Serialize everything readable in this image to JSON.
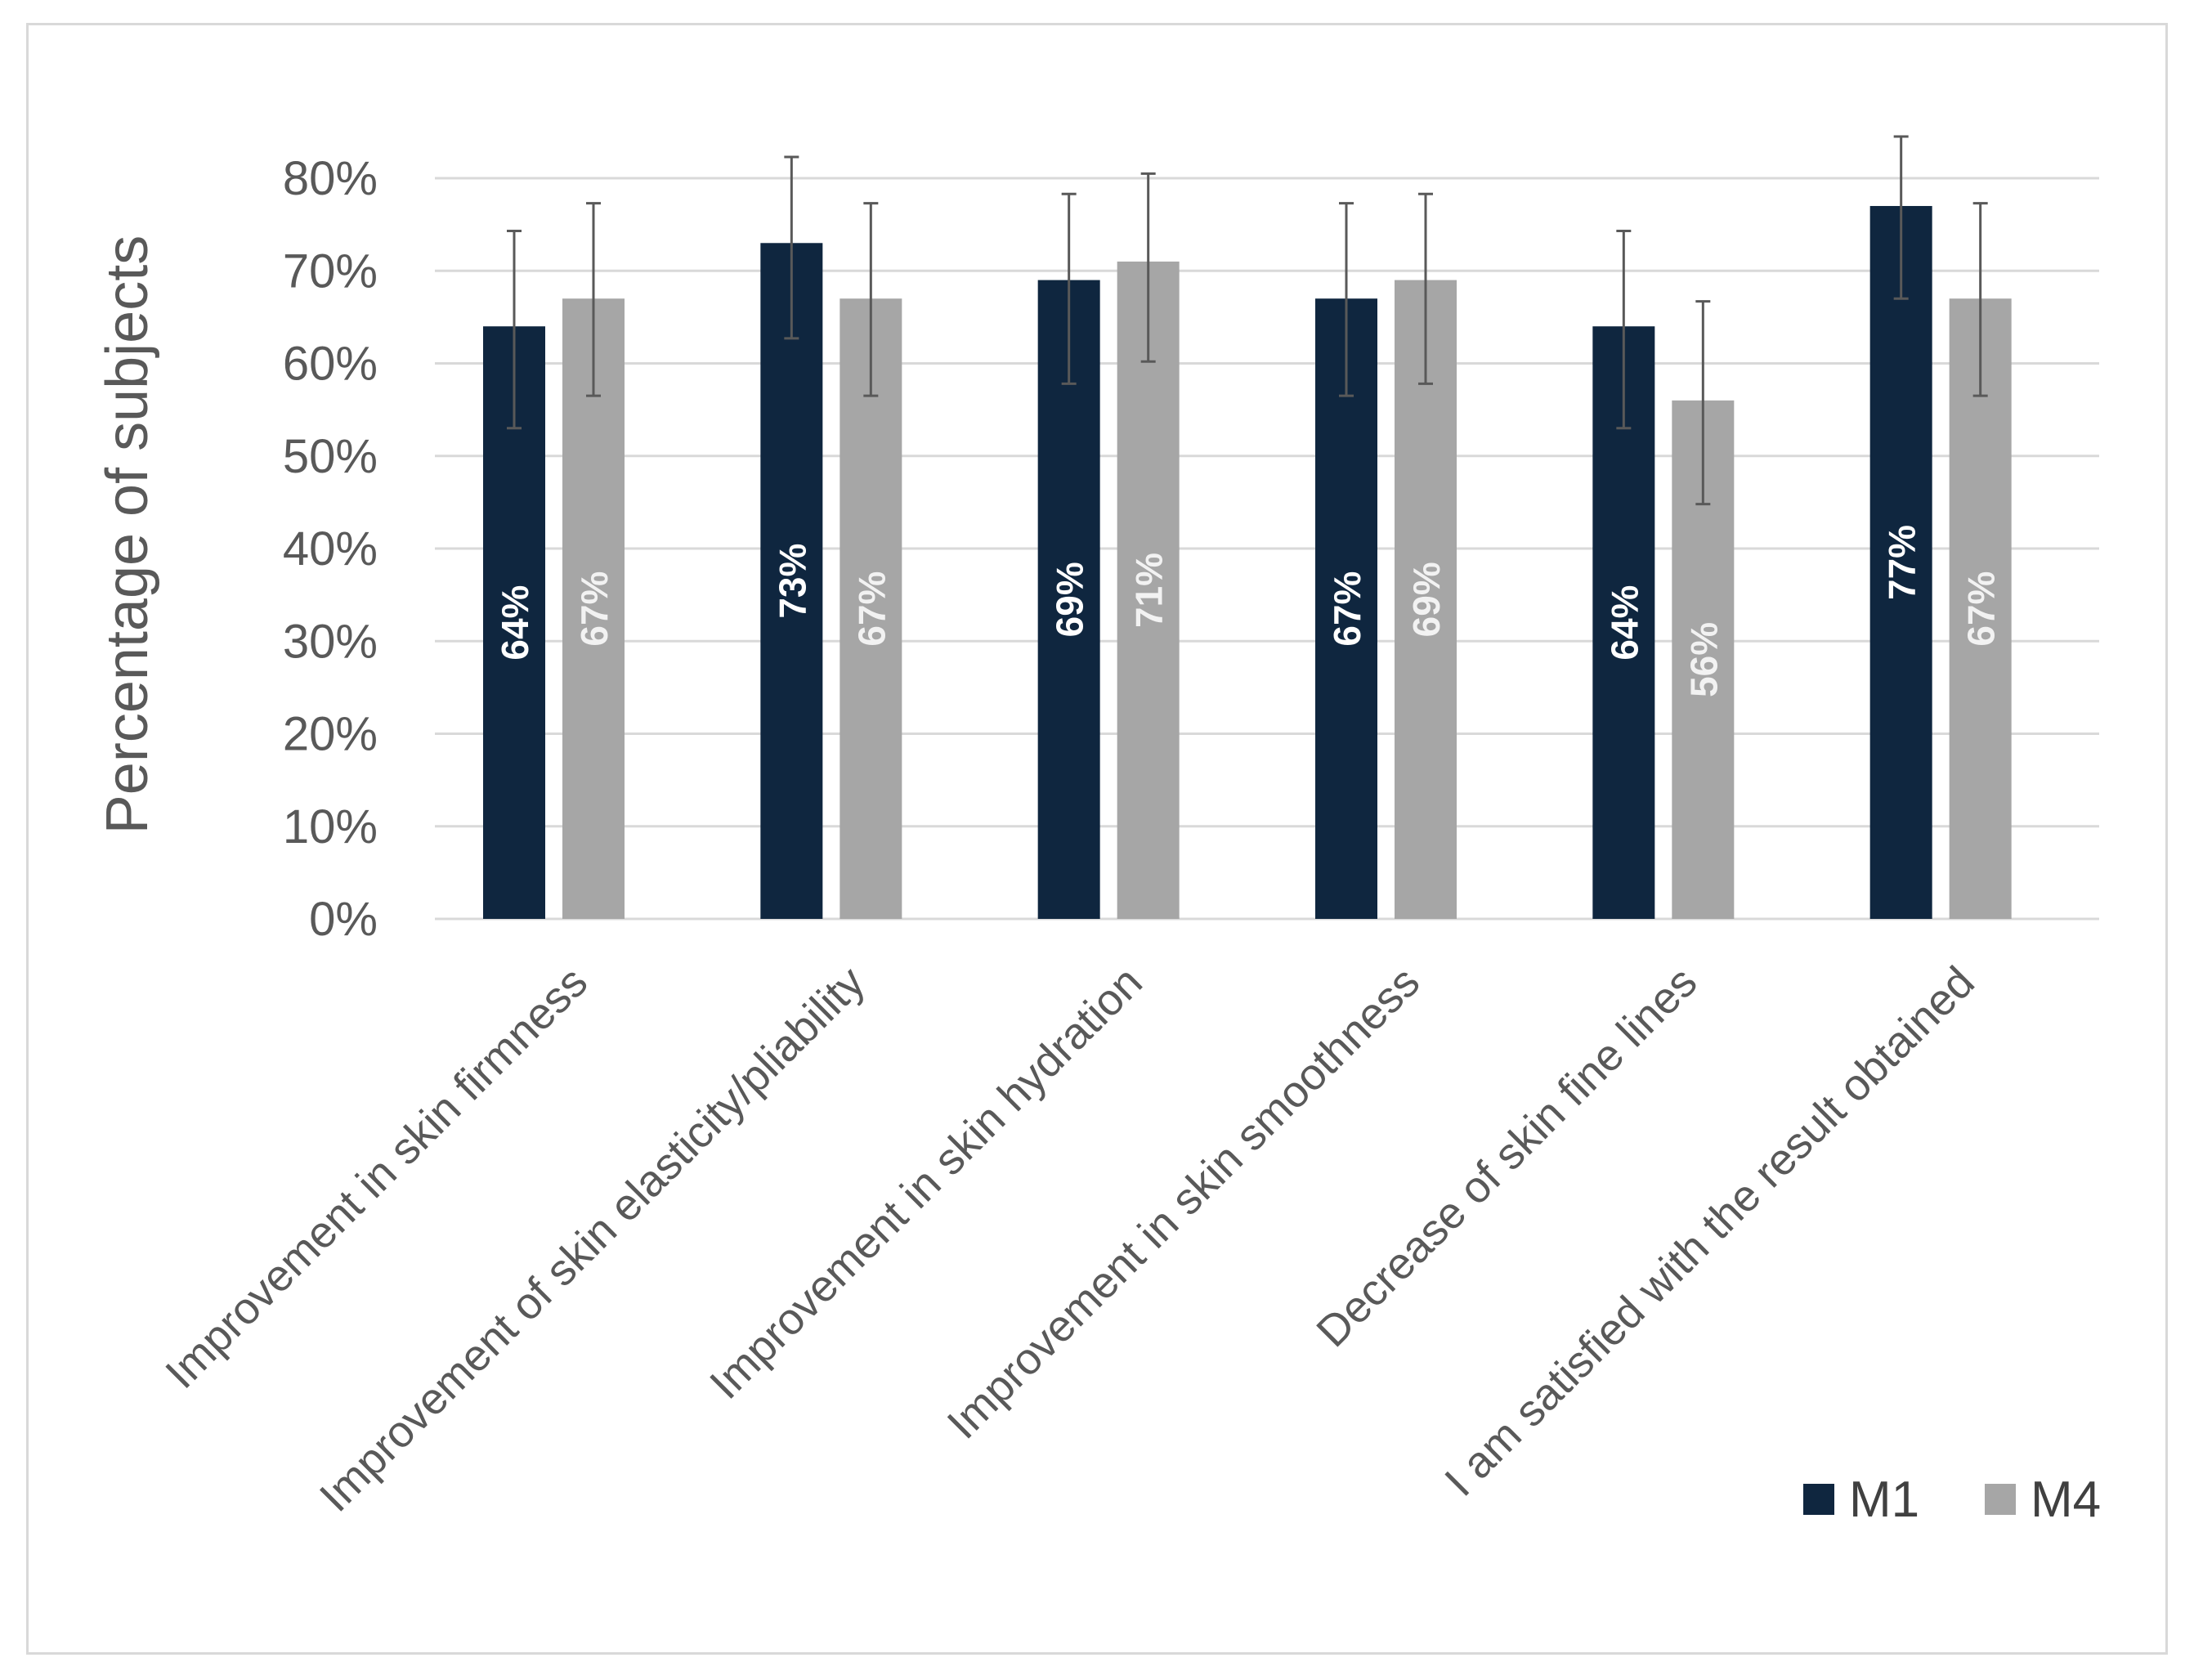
{
  "chart_data": {
    "type": "bar",
    "title": "",
    "xlabel": "",
    "ylabel": "Percentage of subjects",
    "ylim": [
      0,
      80
    ],
    "yticks": [
      0,
      10,
      20,
      30,
      40,
      50,
      60,
      70,
      80
    ],
    "ytick_labels": [
      "0%",
      "10%",
      "20%",
      "30%",
      "40%",
      "50%",
      "60%",
      "70%",
      "80%"
    ],
    "grid": true,
    "legend_position": "bottom-right",
    "categories": [
      "Improvement in skin firmness",
      "Improvement of skin elasticity/pliability",
      "Improvement in skin hydration",
      "Improvement in skin smoothness",
      "Decrease of skin fine lines",
      "I am satisfied with the result obtained"
    ],
    "series": [
      {
        "name": "M1",
        "color": "#0f263f",
        "label_color": "#ffffff",
        "values": [
          64,
          73,
          69,
          67,
          64,
          77
        ],
        "labels": [
          "64%",
          "73%",
          "69%",
          "67%",
          "64%",
          "77%"
        ],
        "error_low": [
          53,
          62.7,
          57.8,
          56.5,
          53,
          67
        ],
        "error_high": [
          74.3,
          82.3,
          78.3,
          77.3,
          74.3,
          84.5
        ]
      },
      {
        "name": "M4",
        "color": "#a6a6a6",
        "label_color": "#f2f2f2",
        "values": [
          67,
          67,
          71,
          69,
          56,
          67
        ],
        "labels": [
          "67%",
          "67%",
          "71%",
          "69%",
          "56%",
          "67%"
        ],
        "error_low": [
          56.5,
          56.5,
          60.2,
          57.8,
          44.8,
          56.5
        ],
        "error_high": [
          77.3,
          77.3,
          80.5,
          78.3,
          66.7,
          77.3
        ]
      }
    ]
  }
}
